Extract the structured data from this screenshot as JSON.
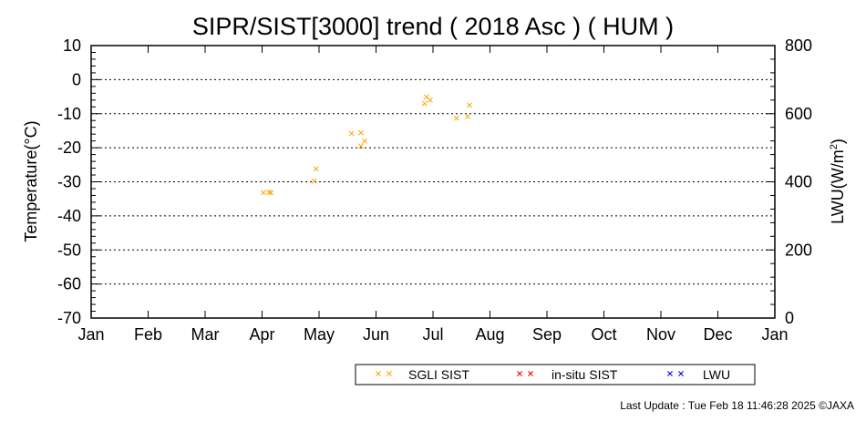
{
  "chart_data": {
    "type": "scatter",
    "title": "SIPR/SIST[3000] trend ( 2018 Asc ) ( HUM )",
    "ylabel": "Temperature(°C)",
    "y2label_main": "LWU(W/m",
    "y2label_sup": "2",
    "y2label_end": ")",
    "ylim": [
      -70,
      10
    ],
    "y2lim": [
      0,
      800
    ],
    "yticks": [
      "10",
      "0",
      "-10",
      "-20",
      "-30",
      "-40",
      "-50",
      "-60",
      "-70"
    ],
    "y2ticks": [
      "800",
      "600",
      "400",
      "200",
      "0"
    ],
    "xticks": [
      "Jan",
      "Feb",
      "Mar",
      "Apr",
      "May",
      "Jun",
      "Jul",
      "Aug",
      "Sep",
      "Oct",
      "Nov",
      "Dec",
      "Jan"
    ],
    "grid": true,
    "legend_position": "bottom",
    "colors": {
      "sgli": "#FFA500",
      "insitu": "#E00000",
      "lwu": "#0000E0"
    },
    "series": [
      {
        "name": "SGLI SIST",
        "points": [
          {
            "x": "2018-04-03",
            "y": -33.2
          },
          {
            "x": "2018-04-06",
            "y": -33.1
          },
          {
            "x": "2018-04-07",
            "y": -33.2
          },
          {
            "x": "2018-04-30",
            "y": -29.8
          },
          {
            "x": "2018-05-01",
            "y": -26.2
          },
          {
            "x": "2018-05-20",
            "y": -15.8
          },
          {
            "x": "2018-05-25",
            "y": -15.6
          },
          {
            "x": "2018-05-27",
            "y": -18.0
          },
          {
            "x": "2018-05-25",
            "y": -19.5
          },
          {
            "x": "2018-06-29",
            "y": -5.1
          },
          {
            "x": "2018-06-28",
            "y": -7.0
          },
          {
            "x": "2018-07-01",
            "y": -6.0
          },
          {
            "x": "2018-07-15",
            "y": -11.3
          },
          {
            "x": "2018-07-22",
            "y": -7.5
          },
          {
            "x": "2018-07-21",
            "y": -10.8
          }
        ]
      },
      {
        "name": "in-situ SIST",
        "points": []
      },
      {
        "name": "LWU",
        "points": []
      }
    ]
  },
  "legend": {
    "sgli": "SGLI SIST",
    "insitu": "in-situ SIST",
    "lwu": "LWU"
  },
  "footer": "Last Update : Tue Feb 18 11:46:28 2025  ©JAXA"
}
